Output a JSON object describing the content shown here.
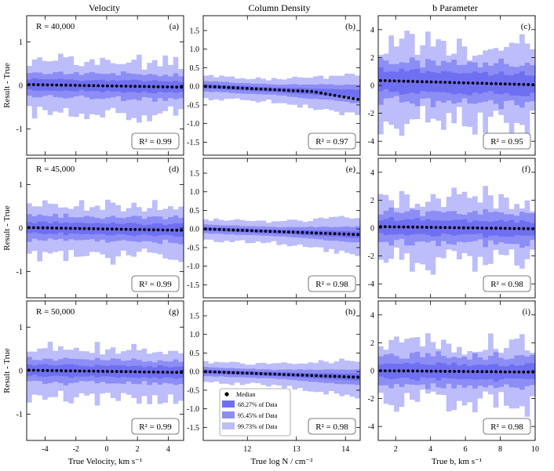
{
  "figure": {
    "column_titles": [
      "Velocity",
      "Column Density",
      "b Parameter"
    ],
    "row_ylabel": "Result - True",
    "x_labels": [
      "True Velocity, km s⁻¹",
      "True log N / cm⁻²",
      "True b, km s⁻¹"
    ]
  },
  "legend": {
    "median": "Median",
    "band1": "68.27% of Data",
    "band2": "95.45% of Data",
    "band3": "99.73% of Data"
  },
  "colors": {
    "band1": "#6f6ff2",
    "band2": "#8d8df6",
    "band3": "#bdbdfb",
    "median": "#000000"
  },
  "chart_data": [
    {
      "type": "area",
      "id": "a",
      "title": "Velocity",
      "panel_label": "(a)",
      "resolution_label": "R = 40,000",
      "r2_label": "R² = 0.99",
      "xlim": [
        -5.2,
        5.0
      ],
      "ylim": [
        -1.6,
        1.6
      ],
      "xticks": [
        -4,
        -2,
        0,
        2,
        4
      ],
      "yticks": [
        -1,
        0,
        1
      ],
      "ylabel": "Result - True",
      "xlabel": "",
      "median": 0.02,
      "median_slope": -0.06,
      "b1": 0.12,
      "b2": 0.26,
      "b3": 0.52,
      "noise": 0.18
    },
    {
      "type": "area",
      "id": "b",
      "title": "Column Density",
      "panel_label": "(b)",
      "resolution_label": "",
      "r2_label": "R² = 0.97",
      "xlim": [
        11.1,
        14.3
      ],
      "ylim": [
        -1.85,
        1.9
      ],
      "xticks": [
        12,
        13,
        14
      ],
      "yticks": [
        -1.5,
        -1.0,
        -0.5,
        0.0,
        0.5,
        1.0,
        1.5
      ],
      "ylabel": "",
      "xlabel": "",
      "median": 0.0,
      "median_slope": -0.2,
      "b1": 0.06,
      "b2": 0.14,
      "b3": 0.28,
      "noise": 0.12
    },
    {
      "type": "area",
      "id": "c",
      "title": "b Parameter",
      "panel_label": "(c)",
      "resolution_label": "",
      "r2_label": "R² = 0.95",
      "xlim": [
        1,
        10
      ],
      "ylim": [
        -5,
        5
      ],
      "xticks": [
        2,
        4,
        6,
        8,
        10
      ],
      "yticks": [
        -4,
        -2,
        0,
        2,
        4
      ],
      "ylabel": "",
      "xlabel": "",
      "median": 0.35,
      "median_slope": -0.3,
      "b1": 0.7,
      "b2": 1.3,
      "b3": 2.4,
      "noise": 0.3
    },
    {
      "type": "area",
      "id": "d",
      "title": "",
      "panel_label": "(d)",
      "resolution_label": "R = 45,000",
      "r2_label": "R² = 0.99",
      "xlim": [
        -5.2,
        5.0
      ],
      "ylim": [
        -1.6,
        1.6
      ],
      "xticks": [
        -4,
        -2,
        0,
        2,
        4
      ],
      "yticks": [
        -1,
        0,
        1
      ],
      "ylabel": "Result - True",
      "xlabel": "",
      "median": 0.01,
      "median_slope": -0.06,
      "b1": 0.12,
      "b2": 0.26,
      "b3": 0.5,
      "noise": 0.18
    },
    {
      "type": "area",
      "id": "e",
      "title": "",
      "panel_label": "(e)",
      "resolution_label": "",
      "r2_label": "R² = 0.98",
      "xlim": [
        11.1,
        14.3
      ],
      "ylim": [
        -1.85,
        1.9
      ],
      "xticks": [
        12,
        13,
        14
      ],
      "yticks": [
        -1.5,
        -1.0,
        -0.5,
        0.0,
        0.5,
        1.0,
        1.5
      ],
      "ylabel": "",
      "xlabel": "",
      "median": 0.0,
      "median_slope": -0.15,
      "b1": 0.05,
      "b2": 0.12,
      "b3": 0.26,
      "noise": 0.12
    },
    {
      "type": "area",
      "id": "f",
      "title": "",
      "panel_label": "(f)",
      "resolution_label": "",
      "r2_label": "R² = 0.98",
      "xlim": [
        1,
        10
      ],
      "ylim": [
        -5,
        5
      ],
      "xticks": [
        2,
        4,
        6,
        8,
        10
      ],
      "yticks": [
        -4,
        -2,
        0,
        2,
        4
      ],
      "ylabel": "",
      "xlabel": "",
      "median": 0.1,
      "median_slope": -0.15,
      "b1": 0.5,
      "b2": 1.0,
      "b3": 1.9,
      "noise": 0.3
    },
    {
      "type": "area",
      "id": "g",
      "title": "",
      "panel_label": "(g)",
      "resolution_label": "R = 50,000",
      "r2_label": "R² = 0.99",
      "xlim": [
        -5.2,
        5.0
      ],
      "ylim": [
        -1.6,
        1.6
      ],
      "xticks": [
        -4,
        -2,
        0,
        2,
        4
      ],
      "yticks": [
        -1,
        0,
        1
      ],
      "ylabel": "Result - True",
      "xlabel": "True Velocity, km s⁻¹",
      "median": 0.01,
      "median_slope": -0.05,
      "b1": 0.12,
      "b2": 0.25,
      "b3": 0.48,
      "noise": 0.18
    },
    {
      "type": "area",
      "id": "h",
      "title": "",
      "panel_label": "(h)",
      "resolution_label": "",
      "r2_label": "R² = 0.98",
      "xlim": [
        11.1,
        14.3
      ],
      "ylim": [
        -1.85,
        1.9
      ],
      "xticks": [
        12,
        13,
        14
      ],
      "yticks": [
        -1.5,
        -1.0,
        -0.5,
        0.0,
        0.5,
        1.0,
        1.5
      ],
      "ylabel": "",
      "xlabel": "True log N / cm⁻²",
      "median": 0.0,
      "median_slope": -0.15,
      "b1": 0.05,
      "b2": 0.12,
      "b3": 0.26,
      "noise": 0.12
    },
    {
      "type": "area",
      "id": "i",
      "title": "",
      "panel_label": "(i)",
      "resolution_label": "",
      "r2_label": "R² = 0.98",
      "xlim": [
        1,
        10
      ],
      "ylim": [
        -5,
        5
      ],
      "xticks": [
        2,
        4,
        6,
        8,
        10
      ],
      "yticks": [
        -4,
        -2,
        0,
        2,
        4
      ],
      "ylabel": "",
      "xlabel": "True b, km s⁻¹",
      "median": 0.0,
      "median_slope": -0.1,
      "b1": 0.5,
      "b2": 1.0,
      "b3": 1.8,
      "noise": 0.3
    }
  ]
}
